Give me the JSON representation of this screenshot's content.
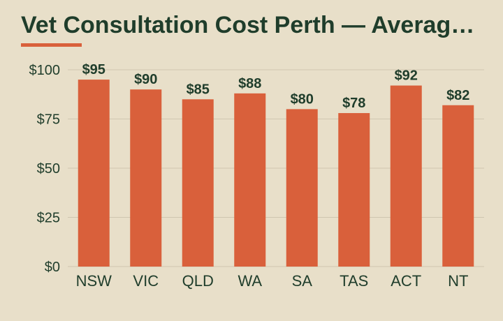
{
  "chart_data": {
    "type": "bar",
    "title": "Vet Consultation Cost Perth — Averag…",
    "categories": [
      "NSW",
      "VIC",
      "QLD",
      "WA",
      "SA",
      "TAS",
      "ACT",
      "NT"
    ],
    "values": [
      95,
      90,
      85,
      88,
      80,
      78,
      92,
      82
    ],
    "data_labels": [
      "$95",
      "$90",
      "$85",
      "$88",
      "$80",
      "$78",
      "$92",
      "$82"
    ],
    "y_ticks": [
      0,
      25,
      50,
      75,
      100
    ],
    "y_tick_labels": [
      "$0",
      "$25",
      "$50",
      "$75",
      "$100"
    ],
    "ylim": [
      0,
      100
    ],
    "grid": true,
    "bar_color": "#d9603b",
    "text_color": "#1f3d2b",
    "background_color": "#e8dfc9",
    "grid_color": "#cfc6b0"
  }
}
